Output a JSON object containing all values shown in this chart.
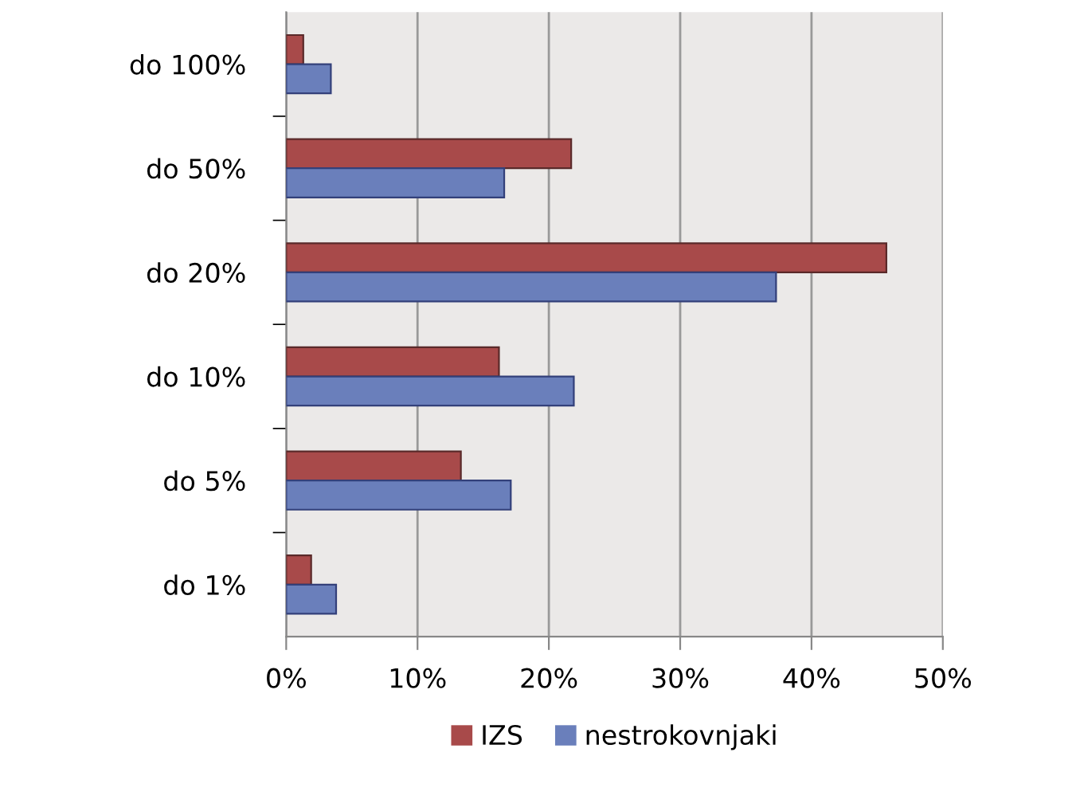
{
  "chart_data": {
    "type": "bar",
    "orientation": "horizontal",
    "categories": [
      "do 100%",
      "do 50%",
      "do 20%",
      "do 10%",
      "do 5%",
      "do 1%"
    ],
    "series": [
      {
        "name": "IZS",
        "color": "#a84a4a",
        "values": [
          1.3,
          21.7,
          45.7,
          16.2,
          13.3,
          1.9
        ]
      },
      {
        "name": "nestrokovnjaki",
        "color": "#6a7fbb",
        "values": [
          3.4,
          16.6,
          37.3,
          21.9,
          17.1,
          3.8
        ]
      }
    ],
    "xlim": [
      0,
      50
    ],
    "xticks": [
      {
        "value": 0,
        "label": "0%"
      },
      {
        "value": 10,
        "label": "10%"
      },
      {
        "value": 20,
        "label": "20%"
      },
      {
        "value": 30,
        "label": "30%"
      },
      {
        "value": 40,
        "label": "40%"
      },
      {
        "value": 50,
        "label": "50%"
      }
    ],
    "grid": "x",
    "legend": "bottom"
  }
}
